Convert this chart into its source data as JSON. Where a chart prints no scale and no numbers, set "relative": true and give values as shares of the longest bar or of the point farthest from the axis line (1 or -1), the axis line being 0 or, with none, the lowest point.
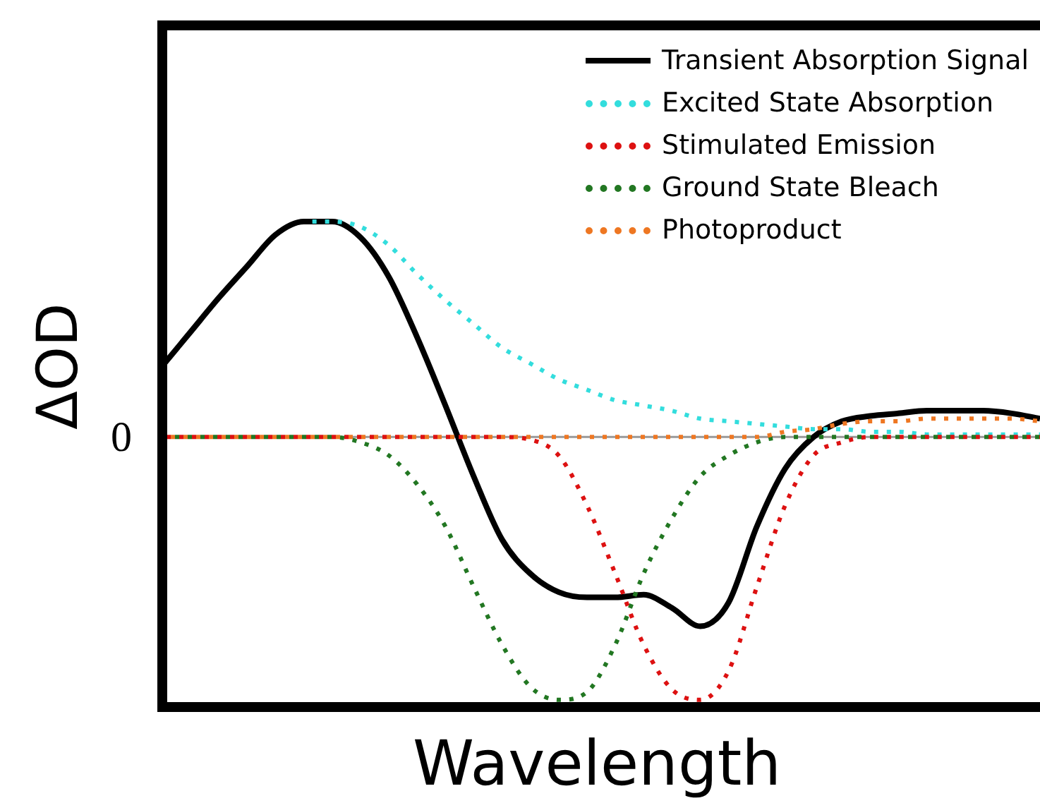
{
  "chart_data": {
    "type": "line",
    "relative": true,
    "xlabel": "Wavelength",
    "ylabel": "ΔOD",
    "legend": "top right",
    "marker": "none",
    "categories": [
      null,
      null,
      null,
      null,
      null,
      null,
      null,
      null,
      null,
      null,
      null,
      null,
      null,
      null,
      null,
      null,
      null,
      null,
      null,
      null,
      null,
      null,
      null,
      null,
      null,
      null,
      null,
      null,
      null,
      null,
      null,
      null
    ],
    "ref_lines": [
      {
        "axis": "y",
        "value": 0,
        "label": "0",
        "color": "#999999"
      }
    ],
    "series": [
      {
        "name": "Transient Absorption Signal",
        "color": "#000000",
        "line_style": "solid",
        "values": [
          0.27,
          0.4,
          0.53,
          0.65,
          0.77,
          0.82,
          0.82,
          0.76,
          0.61,
          0.38,
          0.12,
          -0.15,
          -0.39,
          -0.52,
          -0.59,
          -0.61,
          -0.61,
          -0.6,
          -0.65,
          -0.72,
          -0.63,
          -0.34,
          -0.12,
          0,
          0.06,
          0.08,
          0.09,
          0.1,
          0.1,
          0.1,
          0.09,
          0.07
        ]
      },
      {
        "name": "Excited State Absorption",
        "color": "#33dddd",
        "line_style": "dotted",
        "values": [
          null,
          null,
          null,
          null,
          null,
          0.82,
          0.82,
          0.8,
          0.73,
          0.62,
          0.52,
          0.43,
          0.34,
          0.28,
          0.22,
          0.18,
          0.14,
          0.12,
          0.1,
          0.07,
          0.06,
          0.05,
          0.04,
          0.03,
          0.03,
          0.02,
          0.02,
          0.01,
          0.01,
          0.01,
          0.01,
          0.01
        ]
      },
      {
        "name": "Stimulated Emission",
        "color": "#dd1111",
        "line_style": "dotted",
        "values": [
          0,
          0,
          0,
          0,
          0,
          0,
          0,
          0,
          0,
          0,
          0,
          0,
          0,
          -0.01,
          -0.07,
          -0.26,
          -0.52,
          -0.79,
          -0.96,
          -1,
          -0.89,
          -0.57,
          -0.26,
          -0.07,
          -0.02,
          0,
          0,
          0,
          0,
          0,
          0,
          0
        ]
      },
      {
        "name": "Ground State Bleach",
        "color": "#227722",
        "line_style": "dotted",
        "values": [
          0,
          0,
          0,
          0,
          0,
          0,
          0,
          -0.02,
          -0.07,
          -0.18,
          -0.34,
          -0.57,
          -0.79,
          -0.95,
          -1,
          -0.97,
          -0.79,
          -0.52,
          -0.31,
          -0.15,
          -0.07,
          -0.02,
          0,
          0,
          0,
          0,
          0,
          0,
          0,
          0,
          0,
          0
        ]
      },
      {
        "name": "Photoproduct",
        "color": "#ee7722",
        "line_style": "dotted",
        "values": [
          0,
          0,
          0,
          0,
          0,
          0,
          0,
          0,
          0,
          0,
          0,
          0,
          0,
          0,
          0,
          0,
          0,
          0,
          0,
          0,
          0,
          0,
          0.02,
          0.03,
          0.05,
          0.06,
          0.06,
          0.07,
          0.07,
          0.07,
          0.07,
          0.06
        ]
      }
    ]
  }
}
